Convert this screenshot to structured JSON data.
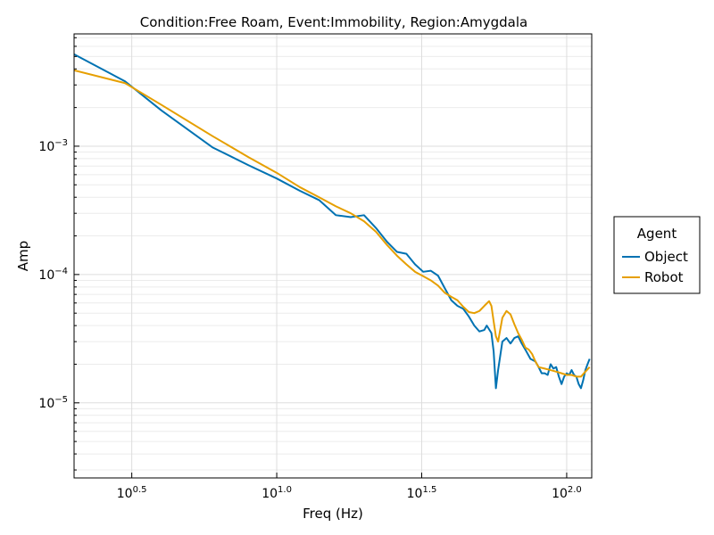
{
  "chart_data": {
    "type": "line",
    "title": "Condition:Free Roam, Event:Immobility, Region:Amygdala",
    "xlabel": "Freq (Hz)",
    "ylabel": "Amp",
    "xscale": "log10",
    "yscale": "log10",
    "xlim": [
      2.0,
      122
    ],
    "ylim": [
      2.6e-06,
      0.0075
    ],
    "grid": true,
    "legend": {
      "title": "Agent",
      "position": "right"
    },
    "x_ticks": [
      {
        "value": 3.1623,
        "base": "10",
        "exp": "0.5"
      },
      {
        "value": 10,
        "base": "10",
        "exp": "1.0"
      },
      {
        "value": 31.623,
        "base": "10",
        "exp": "1.5"
      },
      {
        "value": 100,
        "base": "10",
        "exp": "2.0"
      }
    ],
    "y_ticks": [
      {
        "value": 1e-05,
        "base": "10",
        "exp": "−5"
      },
      {
        "value": 0.0001,
        "base": "10",
        "exp": "−4"
      },
      {
        "value": 0.001,
        "base": "10",
        "exp": "−3"
      }
    ],
    "series": [
      {
        "name": "Object",
        "color": "#0072b2",
        "points": [
          [
            2.0,
            0.0052
          ],
          [
            3.0,
            0.0032
          ],
          [
            4.0,
            0.0019
          ],
          [
            6.0,
            0.00098
          ],
          [
            8.0,
            0.00071
          ],
          [
            10.0,
            0.00056
          ],
          [
            12.0,
            0.00045
          ],
          [
            14.0,
            0.00038
          ],
          [
            16.0,
            0.00029
          ],
          [
            18.0,
            0.00028
          ],
          [
            20.0,
            0.00029
          ],
          [
            22.0,
            0.00023
          ],
          [
            24.0,
            0.00018
          ],
          [
            26.0,
            0.00015
          ],
          [
            28.0,
            0.000145
          ],
          [
            30.0,
            0.00012
          ],
          [
            32.0,
            0.000105
          ],
          [
            34.0,
            0.000107
          ],
          [
            36.0,
            9.8e-05
          ],
          [
            38.0,
            7.8e-05
          ],
          [
            40.0,
            6.3e-05
          ],
          [
            42.0,
            5.7e-05
          ],
          [
            44.0,
            5.4e-05
          ],
          [
            46.0,
            4.7e-05
          ],
          [
            48.0,
            4e-05
          ],
          [
            50.0,
            3.6e-05
          ],
          [
            52.0,
            3.7e-05
          ],
          [
            53.0,
            4e-05
          ],
          [
            55.0,
            3.5e-05
          ],
          [
            56.0,
            2.5e-05
          ],
          [
            57.0,
            1.3e-05
          ],
          [
            58.0,
            1.8e-05
          ],
          [
            60.0,
            3e-05
          ],
          [
            62.0,
            3.2e-05
          ],
          [
            64.0,
            2.9e-05
          ],
          [
            66.0,
            3.2e-05
          ],
          [
            68.0,
            3.3e-05
          ],
          [
            70.0,
            2.9e-05
          ],
          [
            72.0,
            2.6e-05
          ],
          [
            75.0,
            2.2e-05
          ],
          [
            78.0,
            2.1e-05
          ],
          [
            80.0,
            1.9e-05
          ],
          [
            82.0,
            1.7e-05
          ],
          [
            84.0,
            1.7e-05
          ],
          [
            86.0,
            1.65e-05
          ],
          [
            88.0,
            2e-05
          ],
          [
            90.0,
            1.85e-05
          ],
          [
            92.0,
            1.9e-05
          ],
          [
            94.0,
            1.6e-05
          ],
          [
            96.0,
            1.4e-05
          ],
          [
            98.0,
            1.6e-05
          ],
          [
            100.0,
            1.7e-05
          ],
          [
            102.0,
            1.65e-05
          ],
          [
            104.0,
            1.8e-05
          ],
          [
            106.0,
            1.65e-05
          ],
          [
            108.0,
            1.6e-05
          ],
          [
            110.0,
            1.4e-05
          ],
          [
            112.0,
            1.3e-05
          ],
          [
            114.0,
            1.5e-05
          ],
          [
            116.0,
            1.8e-05
          ],
          [
            118.0,
            2e-05
          ],
          [
            120.0,
            2.2e-05
          ]
        ]
      },
      {
        "name": "Robot",
        "color": "#e69f00",
        "points": [
          [
            2.0,
            0.0039
          ],
          [
            3.0,
            0.0031
          ],
          [
            4.0,
            0.0021
          ],
          [
            6.0,
            0.0012
          ],
          [
            8.0,
            0.00082
          ],
          [
            10.0,
            0.00062
          ],
          [
            12.0,
            0.00048
          ],
          [
            14.0,
            0.0004
          ],
          [
            16.0,
            0.00034
          ],
          [
            18.0,
            0.0003
          ],
          [
            20.0,
            0.00026
          ],
          [
            22.0,
            0.000215
          ],
          [
            24.0,
            0.00017
          ],
          [
            26.0,
            0.00014
          ],
          [
            28.0,
            0.00012
          ],
          [
            30.0,
            0.000105
          ],
          [
            32.0,
            9.7e-05
          ],
          [
            34.0,
            9e-05
          ],
          [
            36.0,
            8.2e-05
          ],
          [
            38.0,
            7.2e-05
          ],
          [
            40.0,
            6.7e-05
          ],
          [
            42.0,
            6.3e-05
          ],
          [
            44.0,
            5.6e-05
          ],
          [
            46.0,
            5.1e-05
          ],
          [
            48.0,
            5e-05
          ],
          [
            50.0,
            5.2e-05
          ],
          [
            52.0,
            5.7e-05
          ],
          [
            54.0,
            6.2e-05
          ],
          [
            55.0,
            5.7e-05
          ],
          [
            56.0,
            4.3e-05
          ],
          [
            57.0,
            3.3e-05
          ],
          [
            58.0,
            3e-05
          ],
          [
            60.0,
            4.6e-05
          ],
          [
            62.0,
            5.2e-05
          ],
          [
            64.0,
            4.9e-05
          ],
          [
            66.0,
            4.1e-05
          ],
          [
            68.0,
            3.5e-05
          ],
          [
            70.0,
            3.1e-05
          ],
          [
            72.0,
            2.7e-05
          ],
          [
            74.0,
            2.6e-05
          ],
          [
            76.0,
            2.4e-05
          ],
          [
            78.0,
            2.1e-05
          ],
          [
            80.0,
            1.9e-05
          ],
          [
            84.0,
            1.85e-05
          ],
          [
            88.0,
            1.8e-05
          ],
          [
            92.0,
            1.75e-05
          ],
          [
            96.0,
            1.7e-05
          ],
          [
            100.0,
            1.65e-05
          ],
          [
            104.0,
            1.65e-05
          ],
          [
            108.0,
            1.6e-05
          ],
          [
            112.0,
            1.6e-05
          ],
          [
            116.0,
            1.75e-05
          ],
          [
            120.0,
            1.9e-05
          ]
        ]
      }
    ]
  }
}
